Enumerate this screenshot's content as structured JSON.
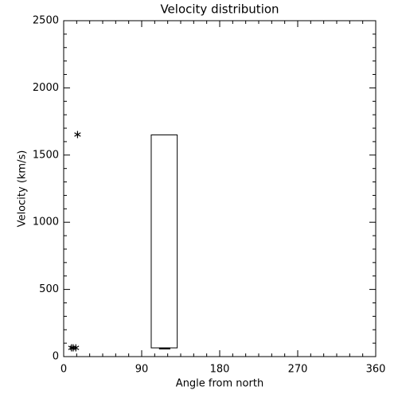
{
  "chart_data": {
    "type": "scatter",
    "title": "Velocity distribution",
    "xlabel": "Angle from north",
    "ylabel": "Velocity (km/s)",
    "xlim": [
      0,
      360
    ],
    "xticks": [
      0,
      90,
      180,
      270,
      360
    ],
    "ylim": [
      0,
      2500
    ],
    "yticks": [
      0,
      500,
      1000,
      1500,
      2000,
      2500
    ],
    "minor_ticks": {
      "x": 6,
      "y": 5
    },
    "color": "#000000",
    "x": [
      16,
      9,
      11,
      14
    ],
    "values": [
      1653,
      65,
      65,
      65
    ],
    "box": {
      "x0": 101,
      "x1": 131,
      "low": 65,
      "high": 1650,
      "median": 60,
      "median_x0": 110,
      "median_x1": 123
    }
  }
}
